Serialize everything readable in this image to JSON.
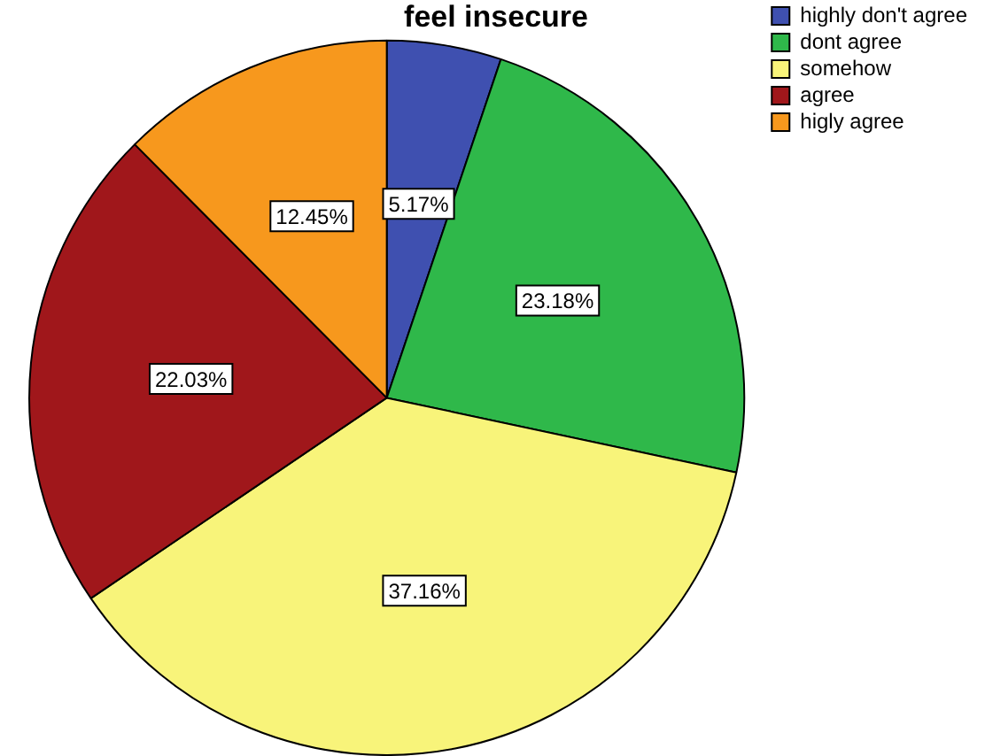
{
  "chart_data": {
    "type": "pie",
    "title": "feel insecure",
    "categories": [
      "highly don't agree",
      "dont agree",
      "somehow",
      "agree",
      "higly agree"
    ],
    "values": [
      5.17,
      23.18,
      37.16,
      22.03,
      12.45
    ],
    "colors": [
      "#3f50b0",
      "#2fb84a",
      "#f8f47a",
      "#a0171b",
      "#f7981d"
    ],
    "value_labels": [
      "5.17%",
      "23.18%",
      "37.16%",
      "22.03%",
      "12.45%"
    ],
    "legend": "top right"
  }
}
